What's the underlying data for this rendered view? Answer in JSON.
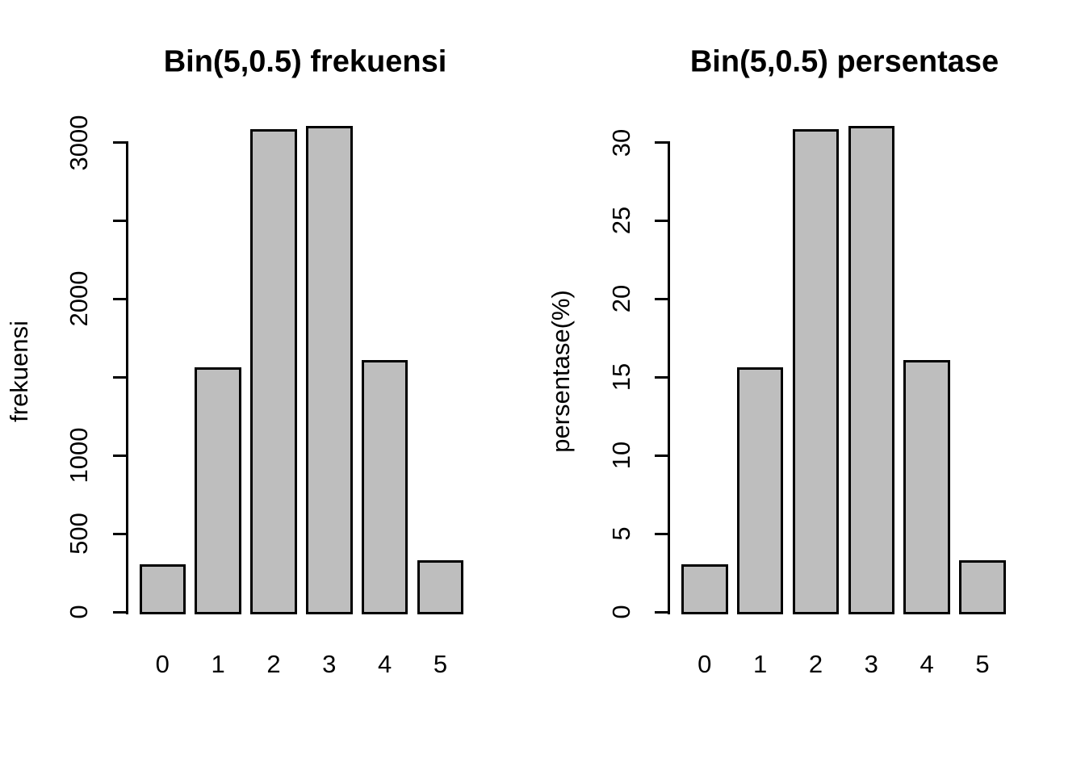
{
  "page": {
    "background": "#ffffff",
    "text_color": "#000000"
  },
  "chart_data": [
    {
      "type": "bar",
      "title": "Bin(5,0.5) frekuensi",
      "xlabel": "",
      "ylabel": "frekuensi",
      "categories": [
        "0",
        "1",
        "2",
        "3",
        "4",
        "5"
      ],
      "values": [
        305,
        1565,
        3085,
        3105,
        1610,
        330
      ],
      "ylim": [
        0,
        3000
      ],
      "yticks": [
        {
          "value": 0,
          "label": "0"
        },
        {
          "value": 500,
          "label": "500"
        },
        {
          "value": 1000,
          "label": "1000"
        },
        {
          "value": 1500,
          "label": ""
        },
        {
          "value": 2000,
          "label": "2000"
        },
        {
          "value": 2500,
          "label": ""
        },
        {
          "value": 3000,
          "label": "3000"
        }
      ],
      "bar_fill": "#bebebe",
      "bar_border": "#000000",
      "grid": false,
      "legend": "none"
    },
    {
      "type": "bar",
      "title": "Bin(5,0.5) persentase",
      "xlabel": "",
      "ylabel": "persentase(%)",
      "categories": [
        "0",
        "1",
        "2",
        "3",
        "4",
        "5"
      ],
      "values": [
        3.05,
        15.65,
        30.85,
        31.05,
        16.1,
        3.3
      ],
      "ylim": [
        0,
        30
      ],
      "yticks": [
        {
          "value": 0,
          "label": "0"
        },
        {
          "value": 5,
          "label": "5"
        },
        {
          "value": 10,
          "label": "10"
        },
        {
          "value": 15,
          "label": "15"
        },
        {
          "value": 20,
          "label": "20"
        },
        {
          "value": 25,
          "label": "25"
        },
        {
          "value": 30,
          "label": "30"
        }
      ],
      "bar_fill": "#bebebe",
      "bar_border": "#000000",
      "grid": false,
      "legend": "none"
    }
  ]
}
